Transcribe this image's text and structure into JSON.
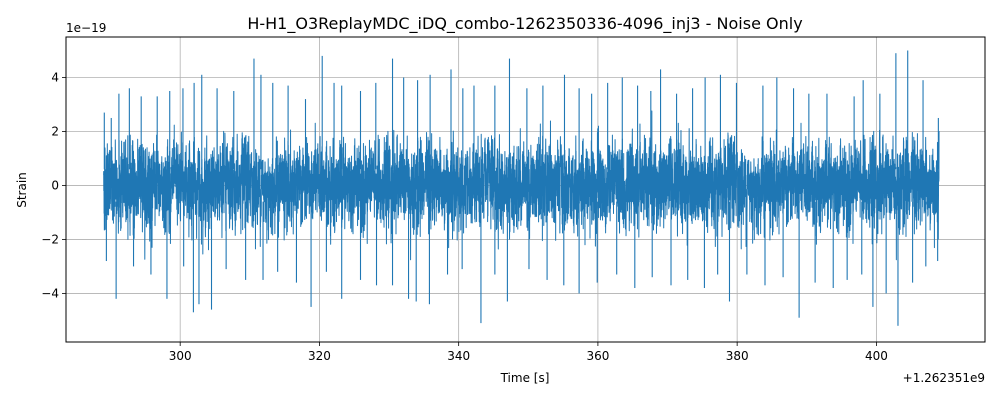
{
  "chart_data": {
    "type": "line",
    "title": "H-H1_O3ReplayMDC_iDQ_combo-1262350336-4096_inj3 - Noise Only",
    "xlabel": "Time [s]",
    "ylabel": "Strain",
    "x_offset_label": "+1.262351e9",
    "y_scale_label": "1e−19",
    "xlim": [
      283.6,
      415.6
    ],
    "ylim": [
      -5.8,
      5.5
    ],
    "x_range_data": [
      289.0,
      409.0
    ],
    "x_ticks": [
      300,
      320,
      340,
      360,
      380,
      400
    ],
    "x_tick_labels": [
      "300",
      "320",
      "340",
      "360",
      "380",
      "400"
    ],
    "y_ticks": [
      -4,
      -2,
      0,
      2,
      4
    ],
    "y_tick_labels": [
      "−4",
      "−2",
      "0",
      "2",
      "4"
    ],
    "grid": true,
    "series": [
      {
        "color": "#1f77b4",
        "peaks": [
          {
            "x": 289.1,
            "y": 2.7
          },
          {
            "x": 290.1,
            "y": 2.5
          },
          {
            "x": 291.2,
            "y": 3.4
          },
          {
            "x": 292.7,
            "y": 3.6
          },
          {
            "x": 294.4,
            "y": 3.3
          },
          {
            "x": 296.7,
            "y": 3.3
          },
          {
            "x": 298.5,
            "y": 3.5
          },
          {
            "x": 300.4,
            "y": 3.6
          },
          {
            "x": 302.0,
            "y": 3.8
          },
          {
            "x": 303.1,
            "y": 4.1
          },
          {
            "x": 305.3,
            "y": 3.6
          },
          {
            "x": 307.7,
            "y": 3.5
          },
          {
            "x": 310.6,
            "y": 4.7
          },
          {
            "x": 311.6,
            "y": 4.1
          },
          {
            "x": 313.3,
            "y": 3.8
          },
          {
            "x": 315.5,
            "y": 3.7
          },
          {
            "x": 318.0,
            "y": 3.2
          },
          {
            "x": 320.4,
            "y": 4.8
          },
          {
            "x": 322.1,
            "y": 3.8
          },
          {
            "x": 323.2,
            "y": 3.7
          },
          {
            "x": 325.9,
            "y": 3.5
          },
          {
            "x": 328.1,
            "y": 3.8
          },
          {
            "x": 330.5,
            "y": 4.7
          },
          {
            "x": 332.1,
            "y": 4.0
          },
          {
            "x": 334.1,
            "y": 3.9
          },
          {
            "x": 335.9,
            "y": 4.1
          },
          {
            "x": 338.9,
            "y": 4.3
          },
          {
            "x": 340.6,
            "y": 3.6
          },
          {
            "x": 342.2,
            "y": 3.7
          },
          {
            "x": 345.2,
            "y": 3.7
          },
          {
            "x": 347.3,
            "y": 4.7
          },
          {
            "x": 349.8,
            "y": 3.6
          },
          {
            "x": 352.1,
            "y": 3.7
          },
          {
            "x": 355.2,
            "y": 4.1
          },
          {
            "x": 357.3,
            "y": 3.6
          },
          {
            "x": 359.1,
            "y": 3.4
          },
          {
            "x": 361.4,
            "y": 3.8
          },
          {
            "x": 363.5,
            "y": 4.0
          },
          {
            "x": 365.7,
            "y": 3.7
          },
          {
            "x": 367.6,
            "y": 3.5
          },
          {
            "x": 369.0,
            "y": 4.3
          },
          {
            "x": 371.3,
            "y": 3.4
          },
          {
            "x": 373.6,
            "y": 3.6
          },
          {
            "x": 375.4,
            "y": 4.0
          },
          {
            "x": 377.6,
            "y": 4.1
          },
          {
            "x": 379.9,
            "y": 3.8
          },
          {
            "x": 383.7,
            "y": 3.7
          },
          {
            "x": 385.7,
            "y": 4.0
          },
          {
            "x": 388.1,
            "y": 3.6
          },
          {
            "x": 390.3,
            "y": 3.4
          },
          {
            "x": 392.9,
            "y": 3.4
          },
          {
            "x": 396.8,
            "y": 3.3
          },
          {
            "x": 398.1,
            "y": 3.9
          },
          {
            "x": 400.5,
            "y": 3.4
          },
          {
            "x": 402.8,
            "y": 4.9
          },
          {
            "x": 404.5,
            "y": 5.0
          },
          {
            "x": 406.7,
            "y": 3.9
          },
          {
            "x": 408.9,
            "y": 2.5
          }
        ],
        "troughs": [
          {
            "x": 289.4,
            "y": -2.8
          },
          {
            "x": 290.8,
            "y": -4.2
          },
          {
            "x": 293.3,
            "y": -3.0
          },
          {
            "x": 295.8,
            "y": -3.3
          },
          {
            "x": 298.1,
            "y": -4.2
          },
          {
            "x": 300.5,
            "y": -3.0
          },
          {
            "x": 301.9,
            "y": -4.7
          },
          {
            "x": 302.7,
            "y": -4.4
          },
          {
            "x": 304.5,
            "y": -4.6
          },
          {
            "x": 306.6,
            "y": -3.1
          },
          {
            "x": 309.4,
            "y": -3.5
          },
          {
            "x": 311.9,
            "y": -3.5
          },
          {
            "x": 314.0,
            "y": -3.2
          },
          {
            "x": 316.7,
            "y": -3.6
          },
          {
            "x": 318.8,
            "y": -4.5
          },
          {
            "x": 321.0,
            "y": -3.2
          },
          {
            "x": 323.2,
            "y": -4.2
          },
          {
            "x": 325.9,
            "y": -3.5
          },
          {
            "x": 328.2,
            "y": -3.7
          },
          {
            "x": 330.5,
            "y": -3.7
          },
          {
            "x": 332.8,
            "y": -4.2
          },
          {
            "x": 333.9,
            "y": -4.3
          },
          {
            "x": 335.8,
            "y": -4.4
          },
          {
            "x": 338.4,
            "y": -3.3
          },
          {
            "x": 340.5,
            "y": -3.1
          },
          {
            "x": 343.2,
            "y": -5.1
          },
          {
            "x": 345.2,
            "y": -3.3
          },
          {
            "x": 347.0,
            "y": -4.3
          },
          {
            "x": 350.1,
            "y": -3.1
          },
          {
            "x": 352.7,
            "y": -3.5
          },
          {
            "x": 355.1,
            "y": -3.7
          },
          {
            "x": 357.3,
            "y": -4.0
          },
          {
            "x": 359.9,
            "y": -3.6
          },
          {
            "x": 362.7,
            "y": -3.3
          },
          {
            "x": 365.3,
            "y": -3.8
          },
          {
            "x": 367.8,
            "y": -3.4
          },
          {
            "x": 370.5,
            "y": -3.7
          },
          {
            "x": 372.9,
            "y": -3.5
          },
          {
            "x": 375.3,
            "y": -3.8
          },
          {
            "x": 377.2,
            "y": -3.3
          },
          {
            "x": 378.9,
            "y": -4.3
          },
          {
            "x": 381.4,
            "y": -3.3
          },
          {
            "x": 384.0,
            "y": -3.7
          },
          {
            "x": 386.6,
            "y": -3.4
          },
          {
            "x": 388.9,
            "y": -4.9
          },
          {
            "x": 391.2,
            "y": -3.6
          },
          {
            "x": 393.8,
            "y": -3.8
          },
          {
            "x": 395.8,
            "y": -3.5
          },
          {
            "x": 397.9,
            "y": -3.3
          },
          {
            "x": 399.5,
            "y": -4.5
          },
          {
            "x": 401.4,
            "y": -4.0
          },
          {
            "x": 403.1,
            "y": -5.2
          },
          {
            "x": 405.2,
            "y": -3.6
          },
          {
            "x": 407.1,
            "y": -3.0
          },
          {
            "x": 408.8,
            "y": -2.8
          }
        ]
      }
    ]
  },
  "colors": {
    "line": "#1f77b4",
    "grid": "#b0b0b0",
    "axes": "#000000",
    "background": "#ffffff"
  }
}
